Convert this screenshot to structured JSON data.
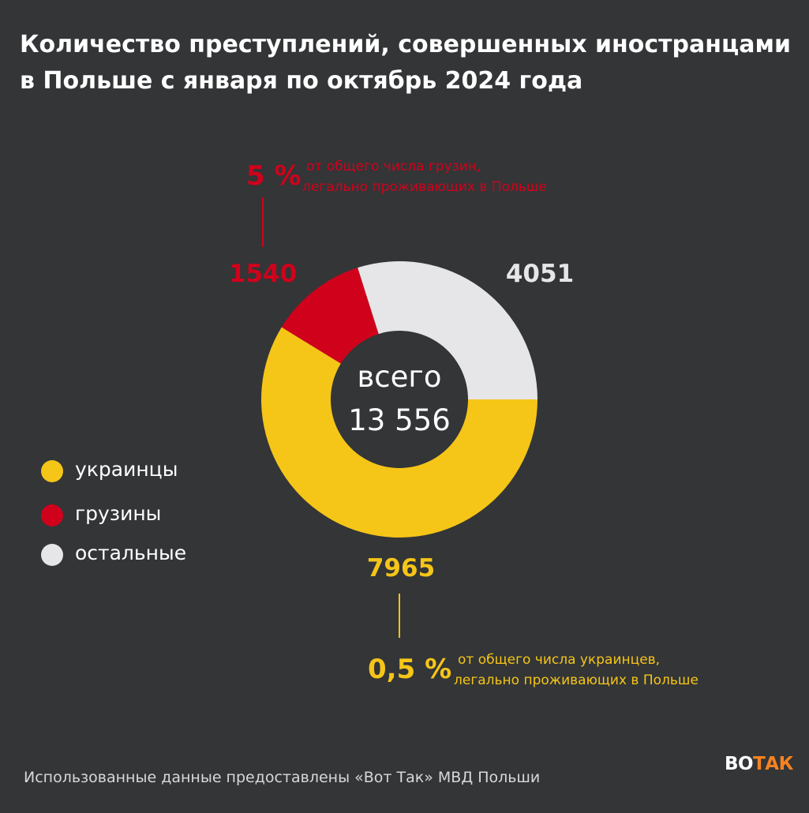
{
  "title": {
    "line1": "Количество преступлений, совершенных иностранцами",
    "line2": "в Польше с января по октябрь 2024 года"
  },
  "chart_data": {
    "type": "donut",
    "categories": [
      "украинцы",
      "грузины",
      "остальные"
    ],
    "values": [
      7965,
      1540,
      4051
    ],
    "colors": [
      "#F5C518",
      "#D0021B",
      "#E6E6E8"
    ],
    "center_label": "всего",
    "center_value": "13 556",
    "legend_position": "left",
    "value_labels": [
      "7965",
      "1540",
      "4051"
    ]
  },
  "notes": {
    "georgians": {
      "percent": "5 %",
      "line1": "от общего числа грузин,",
      "line2": "легально проживающих в Польше",
      "color": "#D0021B"
    },
    "ukrainians": {
      "percent": "0,5 %",
      "line1": "от общего числа украинцев,",
      "line2": "легально проживающих в Польше",
      "color": "#F5C518"
    }
  },
  "source": "Использованные данные предоставлены «Вот Так» МВД Польши",
  "logo": {
    "part1": "ВО",
    "part2": "ТАК",
    "color1": "#ffffff",
    "color2": "#F58220"
  }
}
